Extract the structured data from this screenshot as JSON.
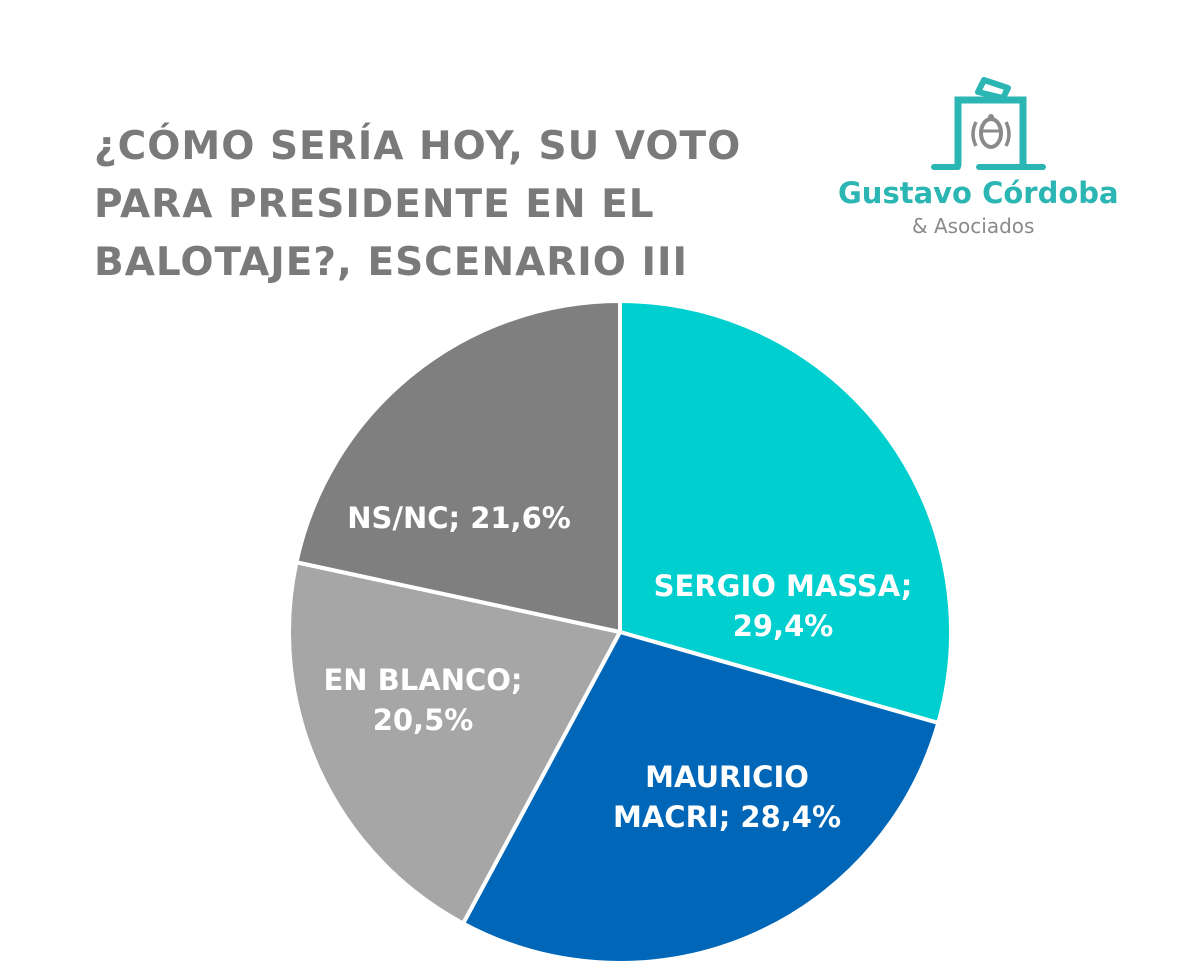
{
  "title": {
    "lines": [
      "¿CÓMO SERÍA HOY, SU VOTO",
      "PARA PRESIDENTE EN EL",
      "BALOTAJE?, ESCENARIO III"
    ]
  },
  "logo": {
    "name": "Gustavo Córdoba",
    "subtitle": "& Asociados",
    "icon": "ballot-box-icon",
    "color": "#2bb5b3"
  },
  "chart_data": {
    "type": "pie",
    "title": "¿CÓMO SERÍA HOY, SU VOTO PARA PRESIDENTE EN EL BALOTAJE?, ESCENARIO III",
    "categories": [
      "SERGIO MASSA",
      "MAURICIO MACRI",
      "EN BLANCO",
      "NS/NC"
    ],
    "values": [
      29.4,
      28.4,
      20.5,
      21.6
    ],
    "colors": [
      "#00cfcf",
      "#0066b8",
      "#a6a6a6",
      "#7f7f7f"
    ],
    "labels": [
      {
        "line1": "SERGIO MASSA;",
        "line2": "29,4%"
      },
      {
        "line1": "MAURICIO",
        "line2": "MACRI; 28,4%"
      },
      {
        "line1": "EN BLANCO;",
        "line2": "20,5%"
      },
      {
        "line1": "NS/NC; 21,6%",
        "line2": ""
      }
    ],
    "start_angle": "12 o'clock, clockwise",
    "legend": "none (data labels inside slices)"
  }
}
